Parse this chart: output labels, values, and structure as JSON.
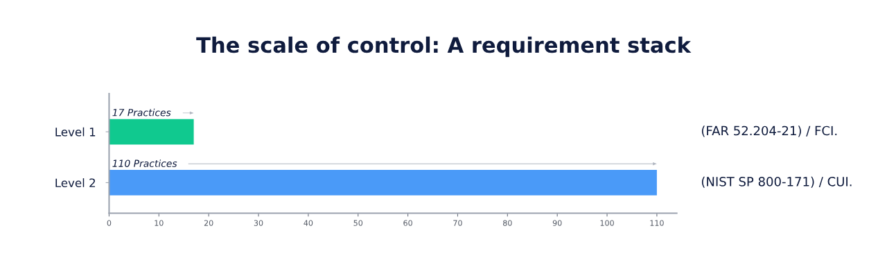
{
  "chart_data": {
    "type": "bar",
    "orientation": "horizontal",
    "title": "The scale of control: A requirement stack",
    "categories": [
      "Level 1",
      "Level 2"
    ],
    "values": [
      17,
      110
    ],
    "colors": [
      "#10c98f",
      "#4a9af8"
    ],
    "value_labels": [
      "17 Practices",
      "110 Practices"
    ],
    "xlim": [
      0,
      114
    ],
    "xticks": [
      0,
      10,
      20,
      30,
      40,
      50,
      60,
      70,
      80,
      90,
      100,
      110
    ],
    "annotations": [
      "(FAR 52.204-21) / FCI.",
      "(NIST SP 800-171) / CUI."
    ],
    "grid": false,
    "legend": false
  }
}
